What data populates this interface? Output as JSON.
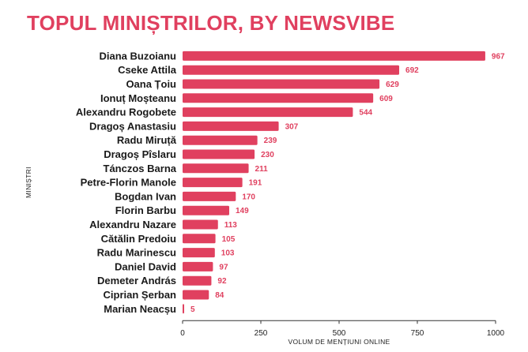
{
  "chart_data": {
    "type": "bar",
    "orientation": "horizontal",
    "title": "TOPUL MINIȘTRILOR, BY NEWSVIBE",
    "xlabel": "VOLUM DE MENȚIUNI ONLINE",
    "ylabel": "MINIȘTRI",
    "xlim": [
      0,
      1000
    ],
    "xticks": [
      "0",
      "250",
      "500",
      "750",
      "1000"
    ],
    "grid": false,
    "colors": {
      "bar": "#e0405f",
      "value_label": "#e0405f",
      "title": "#e0405f"
    },
    "categories": [
      "Diana Buzoianu",
      "Cseke Attila",
      "Oana Țoiu",
      "Ionuț Moșteanu",
      "Alexandru Rogobete",
      "Dragoș Anastasiu",
      "Radu Miruță",
      "Dragoș Pîslaru",
      "Tánczos Barna",
      "Petre-Florin Manole",
      "Bogdan Ivan",
      "Florin Barbu",
      "Alexandru Nazare",
      "Cătălin Predoiu",
      "Radu Marinescu",
      "Daniel David",
      "Demeter András",
      "Ciprian Șerban",
      "Marian Neacșu"
    ],
    "values": [
      967,
      692,
      629,
      609,
      544,
      307,
      239,
      230,
      211,
      191,
      170,
      149,
      113,
      105,
      103,
      97,
      92,
      84,
      5
    ]
  }
}
